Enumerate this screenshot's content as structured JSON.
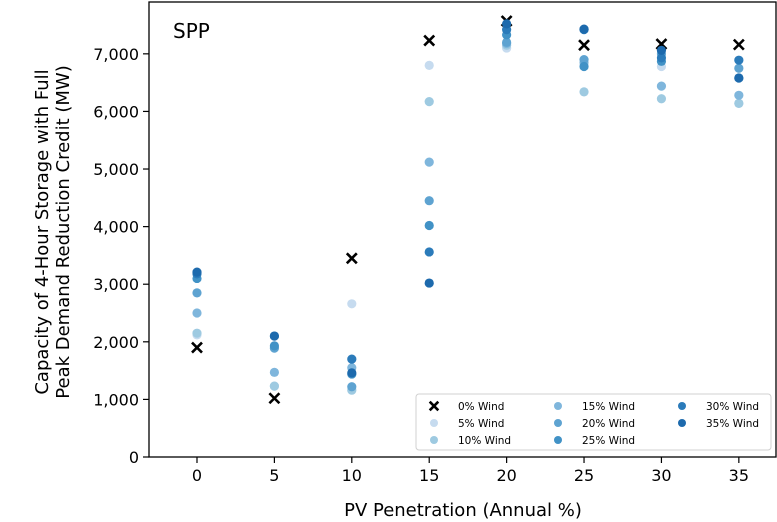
{
  "chart_data": {
    "type": "scatter",
    "title": "SPP",
    "xlabel": "PV Penetration (Annual %)",
    "ylabel": [
      "Capacity of 4-Hour Storage with Full",
      "Peak Demand Reduction Credit (MW)"
    ],
    "x_ticks": [
      "0",
      "5",
      "10",
      "15",
      "20",
      "25",
      "30",
      "35"
    ],
    "y_ticks": [
      "0",
      "1,000",
      "2,000",
      "3,000",
      "4,000",
      "5,000",
      "6,000",
      "7,000"
    ],
    "xlim": [
      -3.1,
      37.4
    ],
    "ylim": [
      0,
      7900
    ],
    "grid": false,
    "legend_position": "lower-right",
    "x": [
      0,
      5,
      10,
      15,
      20,
      25,
      30,
      35
    ],
    "series": [
      {
        "name": "0% Wind",
        "marker": "x",
        "color": "#000000",
        "values": [
          1900,
          1020,
          3450,
          7230,
          7570,
          7150,
          7170,
          7160
        ]
      },
      {
        "name": "5% Wind",
        "marker": "circle",
        "color": "#c6dbef",
        "values": [
          2120,
          1230,
          2660,
          6800,
          7100,
          6800,
          6780,
          6140
        ]
      },
      {
        "name": "10% Wind",
        "marker": "circle",
        "color": "#9ecae1",
        "values": [
          2150,
          1230,
          1160,
          6170,
          7150,
          6340,
          6220,
          6140
        ]
      },
      {
        "name": "15% Wind",
        "marker": "circle",
        "color": "#7fb6dc",
        "values": [
          2500,
          1470,
          1550,
          5120,
          7180,
          6850,
          6440,
          6280
        ]
      },
      {
        "name": "20% Wind",
        "marker": "circle",
        "color": "#5ea3d1",
        "values": [
          2850,
          1890,
          1220,
          4450,
          7200,
          6900,
          7000,
          6750
        ]
      },
      {
        "name": "25% Wind",
        "marker": "circle",
        "color": "#4192c6",
        "values": [
          3100,
          1930,
          1440,
          4020,
          7330,
          6780,
          6870,
          6580
        ]
      },
      {
        "name": "30% Wind",
        "marker": "circle",
        "color": "#2b7bba",
        "values": [
          3180,
          2100,
          1700,
          3560,
          7420,
          7420,
          6930,
          6890
        ]
      },
      {
        "name": "35% Wind",
        "marker": "circle",
        "color": "#1d6aad",
        "values": [
          3210,
          2100,
          1460,
          3020,
          7520,
          7430,
          7060,
          6580
        ]
      }
    ]
  }
}
